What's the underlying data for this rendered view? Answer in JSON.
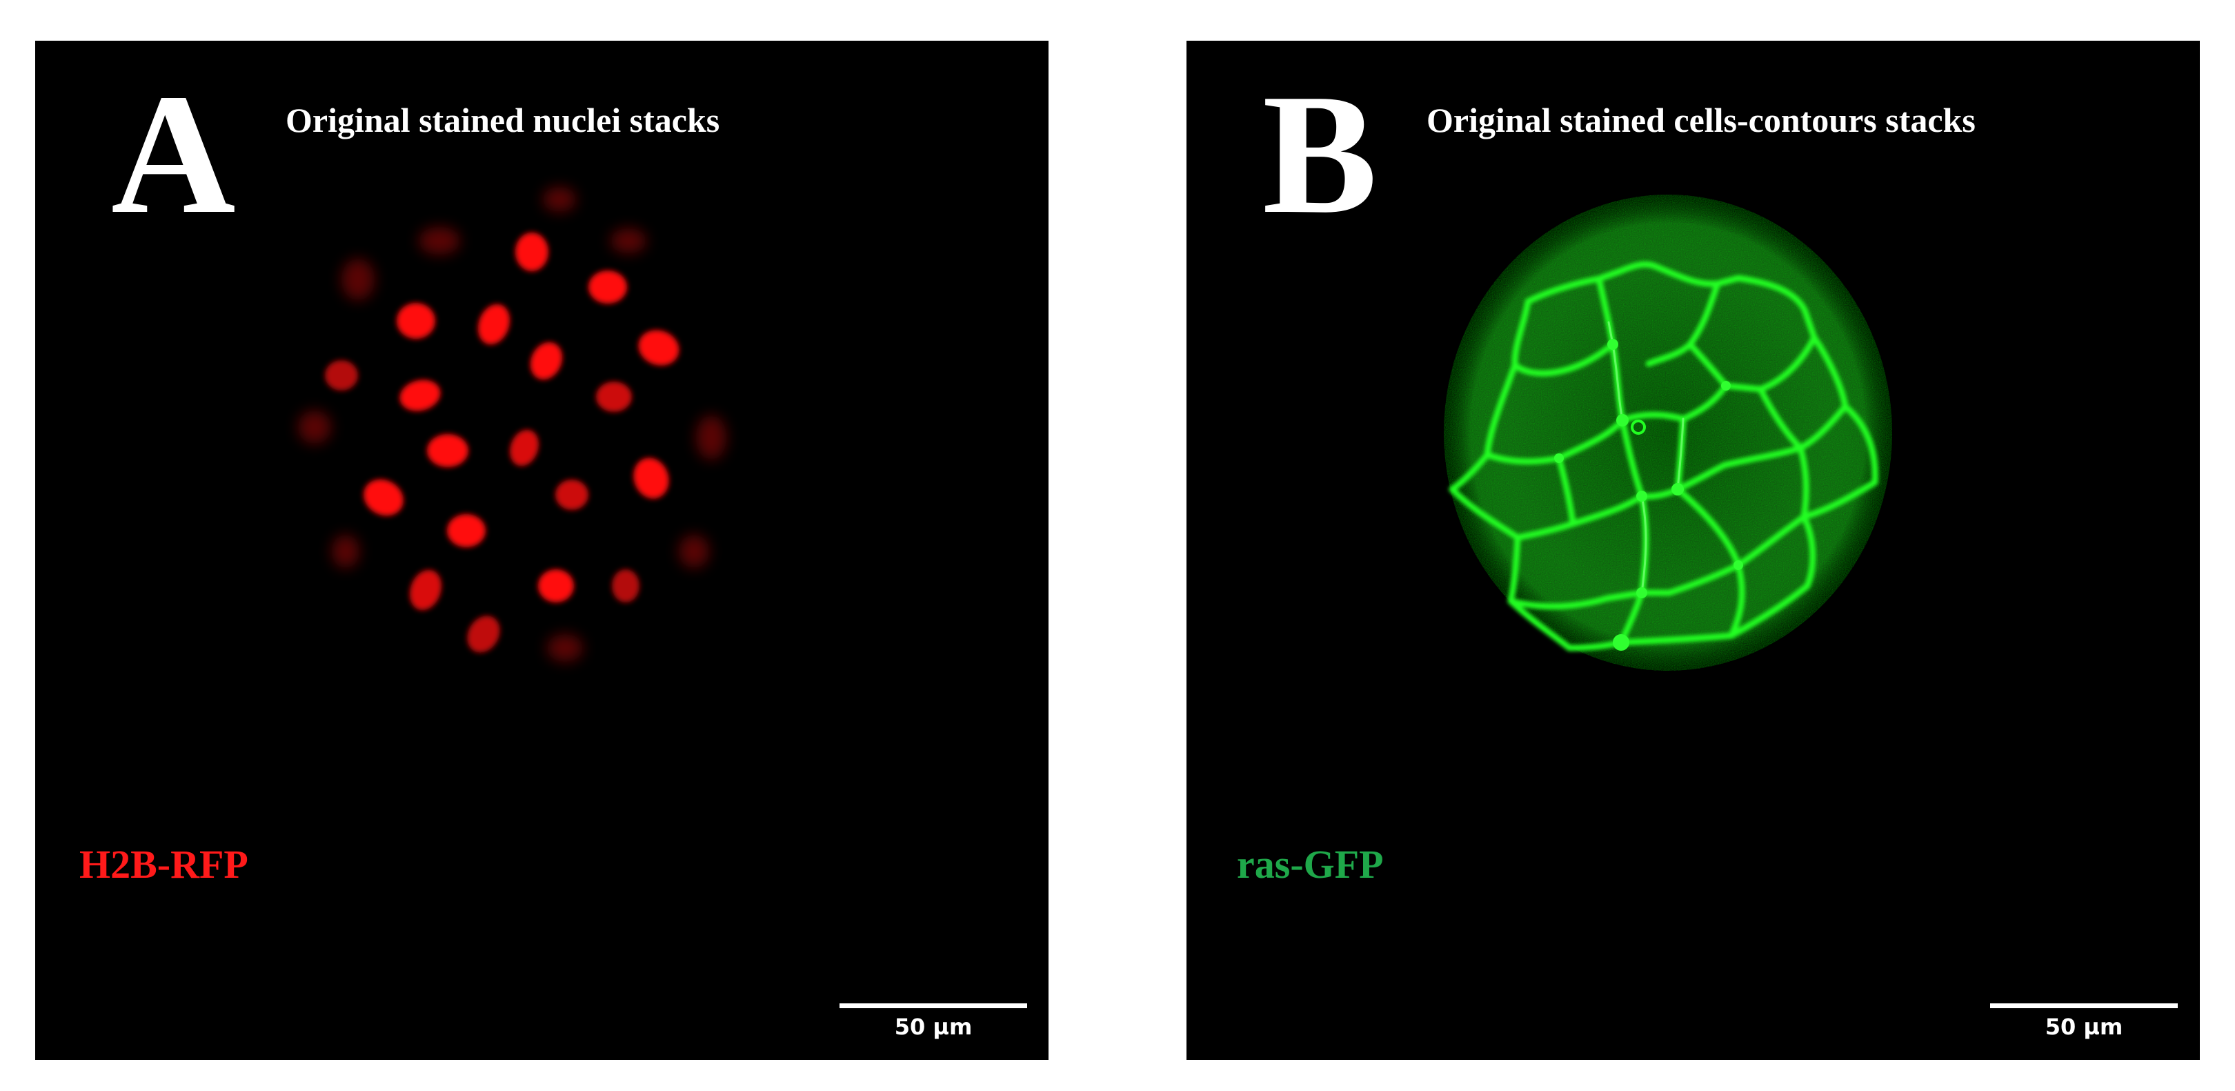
{
  "figure": {
    "panels": [
      {
        "letter": "A",
        "title": "Original stained nuclei stacks",
        "stain_label": "H2B-RFP",
        "stain_color": "#ff1a1a",
        "scale_bar_label": "50 µm"
      },
      {
        "letter": "B",
        "title": "Original stained cells-contours stacks",
        "stain_label": "ras-GFP",
        "stain_color": "#1fa84a",
        "scale_bar_label": "50 µm"
      }
    ],
    "colors": {
      "background": "#000000",
      "nuclei": "#ff1010",
      "membrane": "#20ff20",
      "text": "#ffffff"
    }
  }
}
